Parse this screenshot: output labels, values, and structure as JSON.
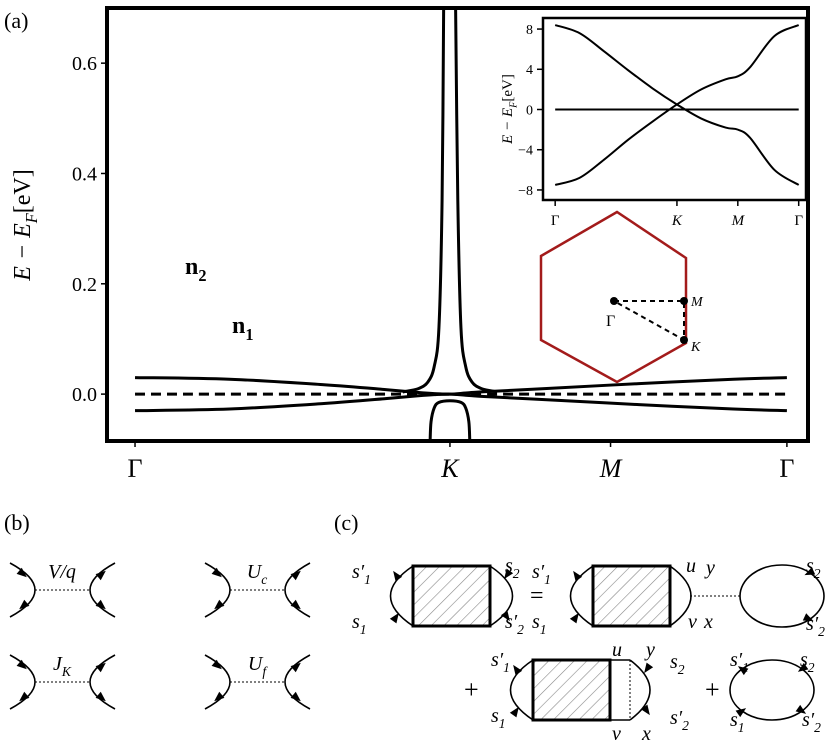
{
  "chart_data": [
    {
      "type": "line",
      "panel_label": "(a)",
      "ylabel": [
        "E − E",
        "F",
        "[eV]"
      ],
      "xlim": [
        -0.089,
        2.137
      ],
      "ylim": [
        -0.085,
        0.7
      ],
      "xticks": [
        {
          "value": 0,
          "label": "Γ"
        },
        {
          "value": 1,
          "label": "K"
        },
        {
          "value": 1.51,
          "label": "M"
        },
        {
          "value": 2.07,
          "label": "Γ"
        }
      ],
      "yticks": [
        {
          "value": 0,
          "label": "0.0"
        },
        0.2,
        0.4,
        0.6
      ],
      "series": [
        {
          "color": "#000000",
          "dash": false,
          "x": [
            0,
            0.3,
            0.6,
            0.8,
            0.9,
            0.95,
            1.0,
            1.05,
            1.1,
            1.3,
            1.6,
            1.9,
            2.07
          ],
          "values": [
            0.03,
            0.027,
            0.017,
            0.008,
            0.003,
            0.001,
            0,
            0.002,
            0.004,
            0.01,
            0.019,
            0.027,
            0.03
          ]
        },
        {
          "color": "#000000",
          "dash": false,
          "x": [
            0,
            0.3,
            0.6,
            0.8,
            0.9,
            0.95,
            1.0,
            1.05,
            1.1,
            1.3,
            1.6,
            1.9,
            2.07
          ],
          "values": [
            -0.03,
            -0.027,
            -0.017,
            -0.008,
            -0.003,
            -0.001,
            0,
            -0.002,
            -0.004,
            -0.01,
            -0.019,
            -0.027,
            -0.03
          ]
        },
        {
          "color": "#000000",
          "dash": true,
          "x": [
            0,
            2.07
          ],
          "values": [
            0,
            0
          ]
        },
        {
          "color": "#000000",
          "dash": false,
          "x": [
            0.85,
            0.9,
            0.93,
            0.95,
            0.965,
            0.975,
            0.98
          ],
          "values": [
            0.004,
            0.01,
            0.022,
            0.05,
            0.12,
            0.35,
            0.7
          ]
        },
        {
          "color": "#000000",
          "dash": false,
          "x": [
            1.018,
            1.025,
            1.035,
            1.05,
            1.07,
            1.1,
            1.15
          ],
          "values": [
            0.7,
            0.35,
            0.12,
            0.05,
            0.022,
            0.01,
            0.004
          ]
        },
        {
          "color": "#000000",
          "dash": false,
          "x": [
            0.937,
            0.94,
            0.95,
            0.965,
            1.0,
            1.035,
            1.05,
            1.06,
            1.063
          ],
          "values": [
            -0.085,
            -0.05,
            -0.025,
            -0.015,
            -0.012,
            -0.015,
            -0.025,
            -0.05,
            -0.085
          ]
        }
      ]
    },
    {
      "type": "line",
      "ylabel": [
        "E − E",
        "F",
        "[eV]"
      ],
      "xlim": [
        -0.1,
        2.06
      ],
      "ylim": [
        -9.0,
        9.1
      ],
      "xticks": [
        {
          "value": 0,
          "label": "Γ"
        },
        {
          "value": 1,
          "label": "K"
        },
        {
          "value": 1.5,
          "label": "M"
        },
        {
          "value": 2,
          "label": "Γ"
        }
      ],
      "yticks": [
        8,
        4,
        0,
        {
          "value": -4,
          "label": "−4"
        },
        {
          "value": -8,
          "label": "−8"
        }
      ],
      "series": [
        {
          "color": "#000000",
          "dash": false,
          "x": [
            0,
            0.2,
            0.4,
            0.6,
            0.8,
            1.0,
            1.2,
            1.4,
            1.5,
            1.6,
            1.8,
            2
          ],
          "values": [
            8.4,
            7.6,
            5.8,
            3.9,
            2.1,
            0.5,
            -0.9,
            -1.8,
            -2,
            -2.8,
            -6,
            -7.5
          ]
        },
        {
          "color": "#000000",
          "dash": false,
          "x": [
            0,
            0.2,
            0.4,
            0.6,
            0.8,
            1.0,
            1.2,
            1.4,
            1.5,
            1.6,
            1.8,
            2
          ],
          "values": [
            -7.5,
            -6.8,
            -5,
            -3,
            -1.2,
            0.5,
            2,
            3,
            3.3,
            4.2,
            7.3,
            8.4
          ]
        },
        {
          "color": "#000000",
          "dash": false,
          "x": [
            0,
            2
          ],
          "values": [
            0,
            0
          ]
        }
      ]
    }
  ],
  "lattice": {
    "n1": [
      "n",
      "1"
    ],
    "n2": [
      "n",
      "2"
    ]
  },
  "brillouin_zone": {
    "gamma": "Γ",
    "m": "M",
    "k": "K"
  },
  "panel_b": {
    "label": "(b)",
    "vertices": [
      "V/q",
      [
        "U",
        "c"
      ],
      [
        "J",
        "K"
      ],
      [
        "U",
        "f"
      ]
    ]
  },
  "panel_c": {
    "label": "(c)",
    "equals": "=",
    "plus": "+",
    "legs": {
      "s1p": [
        "s′",
        "1"
      ],
      "s1": [
        "s",
        "1"
      ],
      "s2": [
        "s",
        "2"
      ],
      "s2p": [
        "s′",
        "2"
      ],
      "u": "u",
      "v": "v",
      "y": "y",
      "x": "x"
    }
  }
}
